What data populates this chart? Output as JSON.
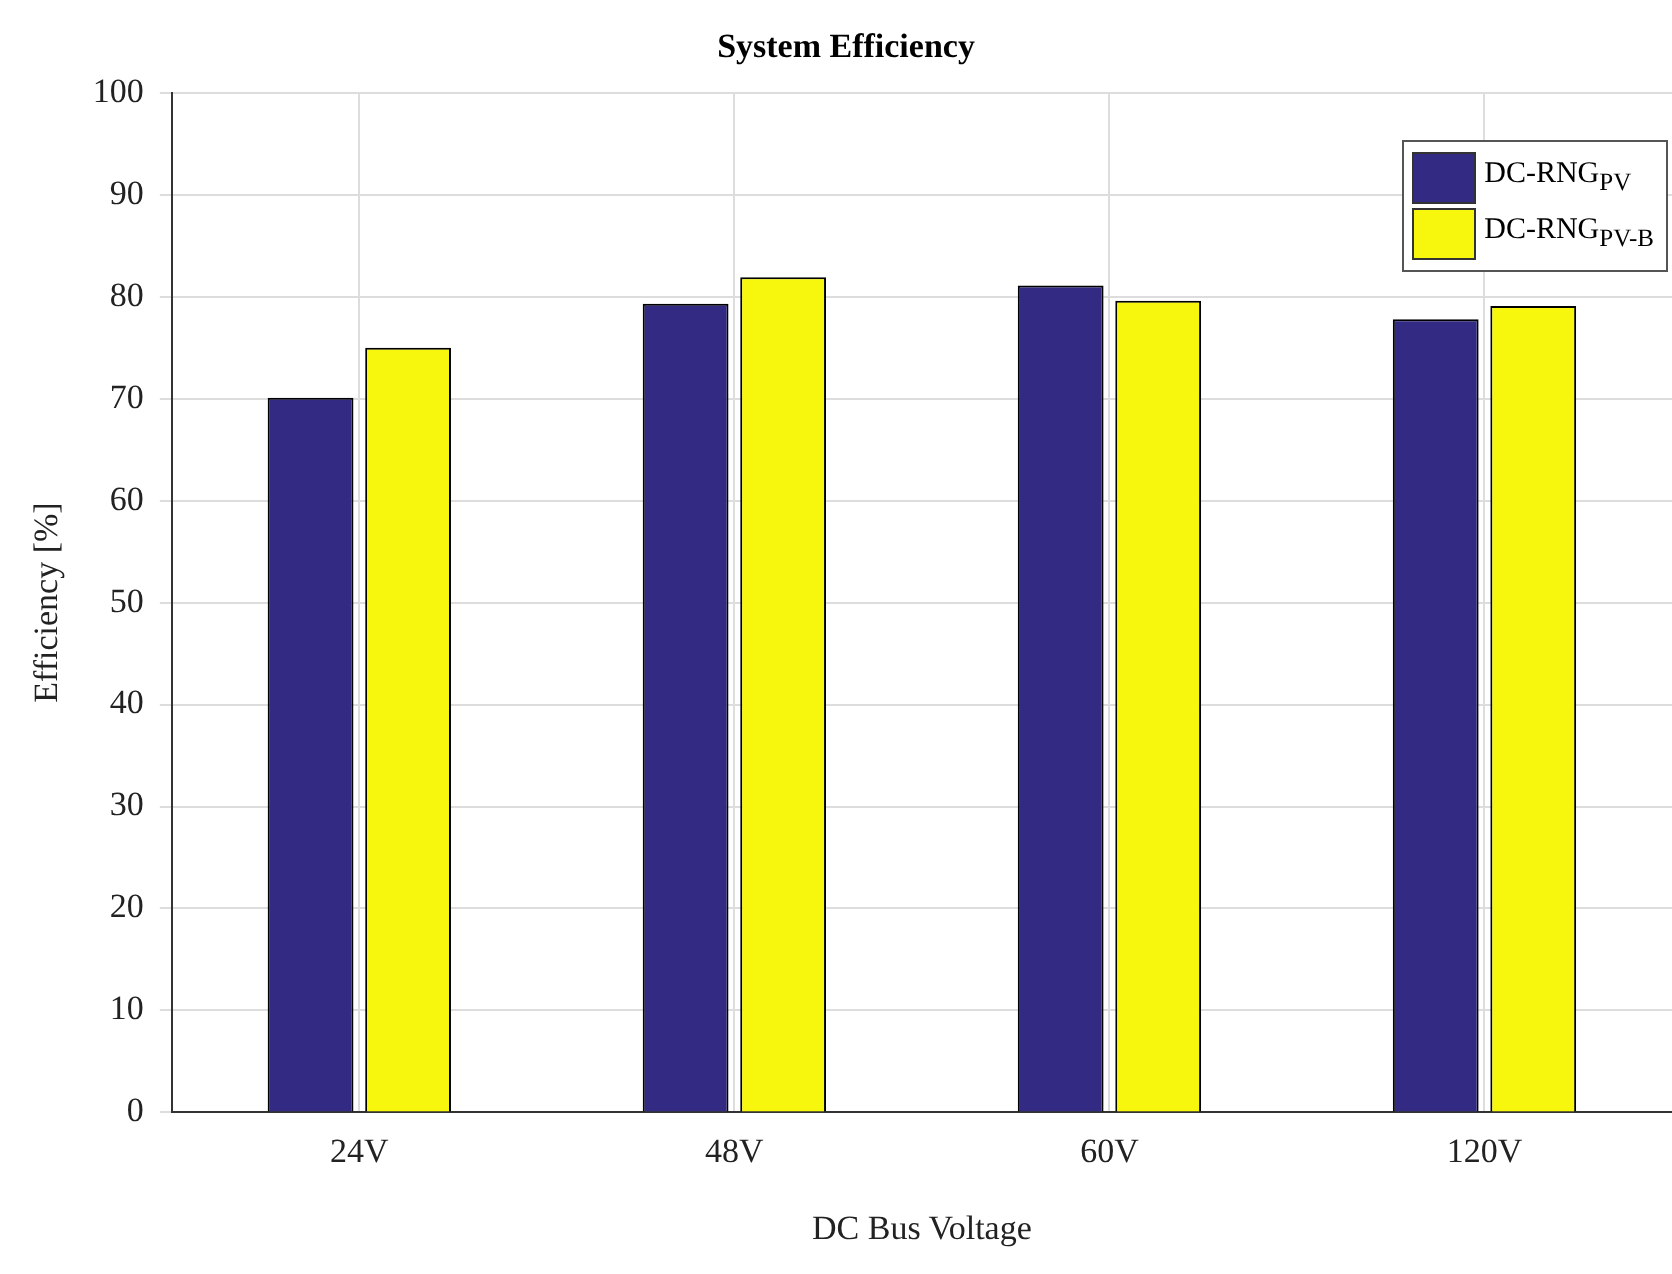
{
  "chart_data": {
    "type": "bar",
    "title": "System Efficiency",
    "xlabel": "DC Bus Voltage",
    "ylabel": "Efficiency [%]",
    "categories": [
      "24V",
      "48V",
      "60V",
      "120V"
    ],
    "series": [
      {
        "name": "DC-RNG$_{PV}$",
        "color": "#332a83",
        "values": [
          70.1,
          79.3,
          81.1,
          77.8
        ]
      },
      {
        "name": "DC-RNG$_{PV-B}$",
        "color": "#f7f70d",
        "values": [
          75.0,
          81.9,
          79.6,
          79.1
        ]
      }
    ],
    "ylim": [
      0,
      100
    ],
    "yticks": [
      0,
      10,
      20,
      30,
      40,
      50,
      60,
      70,
      80,
      90,
      100
    ],
    "grid": true,
    "legend": "top right"
  }
}
